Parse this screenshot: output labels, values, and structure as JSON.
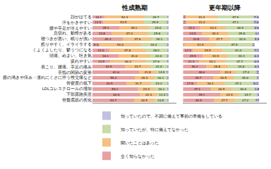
{
  "chart_data": [
    {
      "type": "bar",
      "title": "性成熟期",
      "orientation": "horizontal",
      "stacked": true,
      "data_labels": true,
      "grid": false,
      "legend": "bottom",
      "tick_labels": "y",
      "xlim": [
        0,
        110
      ],
      "categories": [
        "顔がほてる",
        "汗をかきやすい",
        "腰や手足が冷えやすい",
        "息切れ、動悸がある",
        "寝つきが悪い、眠りが浅い",
        "怒りやすく、イライラする",
        "くよくよしたり、鬱うつになる",
        "頭痛、めまい、吐き気",
        "疲れやすい",
        "肩こり、腰痛、手足の痛み",
        "手指の関節の変形",
        "膣の渇きや痒み・濡れにくさに伴う性交痛など",
        "骨密度の低下",
        "LDLコレステロールの増加",
        "下部尿路疾患",
        "骨盤底筋の劣化"
      ],
      "series": [
        {
          "name": "全く知らなかった",
          "color": "#e8a0a0",
          "values": [
            16.1,
            13.9,
            35.1,
            24.8,
            40.3,
            9.4,
            22.0,
            34.1,
            23.5,
            42.5,
            61.6,
            55.2,
            44.5,
            59.1,
            62.6,
            54.7
          ],
          "value_labels": [
            "16.1",
            "13.9",
            "35.1",
            "24.8",
            "40.3",
            "9.4",
            "22.0",
            "34.1",
            "23.5",
            "42.5",
            "61.6",
            "55.2",
            "44.5",
            "59.1",
            "62.6",
            "54.7"
          ]
        },
        {
          "name": "聞いたことはあった",
          "color": "#f5c080",
          "values": [
            52.3,
            53.5,
            39.1,
            47.3,
            37.6,
            54.0,
            47.8,
            41.6,
            46.3,
            33.7,
            21.8,
            26.3,
            31.7,
            23.3,
            22.3,
            26.5
          ],
          "value_labels": [
            "52.3",
            "53.5",
            "39.1",
            "47.3",
            "37.6",
            "54.0",
            "47.8",
            "41.6",
            "46.3",
            "33.7",
            "21.8",
            "26.3",
            "31.7",
            "23.3",
            "22.3",
            "26.5"
          ]
        },
        {
          "name": "知っていたが、特に備えてなかった",
          "color": "#c8dba8",
          "values": [
            29.7,
            29.9,
            24.0,
            25.8,
            20.1,
            34.2,
            28.2,
            22.0,
            27.9,
            22.0,
            14.9,
            16.1,
            22.2,
            16.1,
            13.4,
            16.8
          ],
          "value_labels": [
            "29.7",
            "29.9",
            "24.0",
            "25.8",
            "20.1",
            "34.2",
            "28.2",
            "22.0",
            "27.9",
            "22.0",
            "14.9",
            "16.1",
            "22.2",
            "16.1",
            "13.4",
            "16.8"
          ]
        },
        {
          "name": "知っていたので、不調に備えて事前の準備をしている",
          "color": "#c0c0e0",
          "values": [
            1.9,
            2.7,
            1.9,
            2.0,
            2.0,
            2.4,
            2.0,
            2.4,
            2.4,
            1.9,
            1.7,
            2.4,
            1.7,
            1.5,
            1.7,
            2.0
          ],
          "value_labels": [
            "1.9",
            "2.7",
            "1.9",
            "2.0",
            "2.0",
            "2.4",
            "2.0",
            "2.4",
            "2.4",
            "1.9",
            "1.7",
            "2.4",
            "1.7",
            "1.5",
            "1.7",
            "2.0"
          ]
        }
      ]
    },
    {
      "type": "bar",
      "title": "更年期以降",
      "orientation": "horizontal",
      "stacked": true,
      "data_labels": true,
      "grid": false,
      "tick_labels": false,
      "xlim": [
        0,
        110
      ],
      "categories": [
        "顔がほてる",
        "汗をかきやすい",
        "腰や手足が冷えやすい",
        "息切れ、動悸がある",
        "寝つきが悪い、眠りが浅い",
        "怒りやすく、イライラする",
        "くよくよしたり、鬱うつになる",
        "頭痛、めまい、吐き気",
        "疲れやすい",
        "肩こり、腰痛、手足の痛み",
        "手指の関節の変形",
        "膣の渇きや痒み・濡れにくさに伴う性交痛など",
        "骨密度の低下",
        "LDLコレステロールの増加",
        "下部尿路疾患",
        "骨盤底筋の劣化"
      ],
      "series": [
        {
          "name": "全く知らなかった",
          "color": "#e8a0a0",
          "values": [
            3.6,
            4.1,
            22.2,
            24.9,
            33.8,
            1.7,
            12.4,
            25.5,
            21.3,
            30.2,
            48.6,
            39.7,
            17.8,
            37.1,
            49.1,
            40.5
          ],
          "value_labels": [
            "3.6",
            "4.1",
            "22.2",
            "24.9",
            "33.8",
            "1.7",
            "12.4",
            "25.5",
            "21.3",
            "30.2",
            "48.6",
            "39.7",
            "17.8",
            "37.1",
            "49.1",
            "40.5"
          ]
        },
        {
          "name": "聞いたことはあった",
          "color": "#f5c080",
          "values": [
            41.4,
            41.2,
            34.3,
            34.3,
            27.7,
            41.9,
            39.5,
            33.9,
            34.1,
            28.8,
            20.4,
            26.5,
            36.1,
            26.5,
            23.4,
            27.7
          ],
          "value_labels": [
            "41.4",
            "41.2",
            "34.3",
            "34.3",
            "27.7",
            "41.9",
            "39.5",
            "33.9",
            "34.1",
            "28.8",
            "20.4",
            "26.5",
            "36.1",
            "26.5",
            "23.4",
            "27.7"
          ]
        },
        {
          "name": "知っていたが、特に備えてなかった",
          "color": "#c8dba8",
          "values": [
            47.5,
            47.1,
            36.9,
            35.8,
            32.6,
            47.5,
            41.0,
            34.3,
            37.7,
            34.8,
            27.4,
            30.6,
            37.1,
            30.6,
            24.7,
            27.2
          ],
          "value_labels": [
            "47.5",
            "47.1",
            "36.9",
            "35.8",
            "32.6",
            "47.5",
            "41.0",
            "34.3",
            "37.7",
            "34.8",
            "27.4",
            "30.6",
            "37.1",
            "30.6",
            "24.7",
            "27.2"
          ]
        },
        {
          "name": "知っていたので、不調に備えて事前の準備をしている",
          "color": "#c0c0e0",
          "values": [
            7.6,
            7.6,
            6.6,
            5.1,
            5.9,
            2.9,
            7.1,
            6.3,
            6.9,
            6.3,
            3.6,
            3.1,
            9.1,
            5.8,
            2.8,
            4.6
          ],
          "value_labels": [
            "7.6",
            "7.6",
            "6.6",
            "5.1",
            "5.9",
            "2.9",
            "7.1",
            "6.3",
            "6.9",
            "6.3",
            "3.6",
            "3.1",
            "9.1",
            "5.8",
            "2.8",
            "4.6"
          ]
        }
      ]
    }
  ]
}
